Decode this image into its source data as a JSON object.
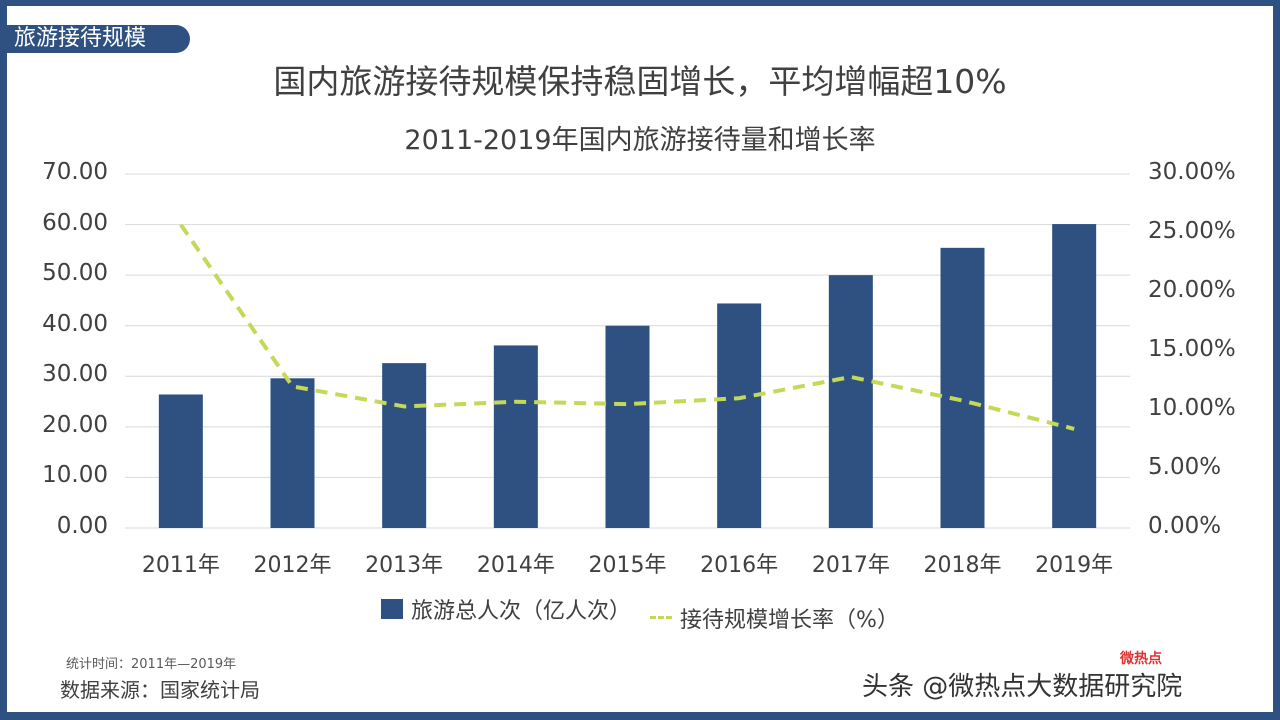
{
  "tag": "旅游接待规模",
  "main_title": "国内旅游接待规模保持稳固增长，平均增幅超10%",
  "chart_title": "2011-2019年国内旅游接待量和增长率",
  "left_axis_ticks": [
    "70.00",
    "60.00",
    "50.00",
    "40.00",
    "30.00",
    "20.00",
    "10.00",
    "0.00"
  ],
  "right_axis_ticks": [
    "30.00%",
    "25.00%",
    "20.00%",
    "15.00%",
    "10.00%",
    "5.00%",
    "0.00%"
  ],
  "x_ticks": [
    "2011年",
    "2012年",
    "2013年",
    "2014年",
    "2015年",
    "2016年",
    "2017年",
    "2018年",
    "2019年"
  ],
  "legend": {
    "bar": "旅游总人次（亿人次）",
    "line": "接待规模增长率（%）"
  },
  "footer": {
    "stat_time": "统计时间：2011年—2019年",
    "source": "数据来源：国家统计局"
  },
  "watermark": {
    "text": "头条 @微热点大数据研究院",
    "logo": "微热点"
  },
  "colors": {
    "bar": "#2e5181",
    "line": "#c3d957",
    "frame": "#2e5181",
    "grid": "#d9d9d9"
  },
  "chart_data": {
    "type": "bar",
    "title": "2011-2019年国内旅游接待量和增长率",
    "categories": [
      "2011年",
      "2012年",
      "2013年",
      "2014年",
      "2015年",
      "2016年",
      "2017年",
      "2018年",
      "2019年"
    ],
    "series": [
      {
        "name": "旅游总人次（亿人次）",
        "type": "bar",
        "axis": "left",
        "values": [
          26.4,
          29.6,
          32.6,
          36.1,
          40.0,
          44.4,
          50.0,
          55.4,
          60.1
        ]
      },
      {
        "name": "接待规模增长率（%）",
        "type": "line",
        "style": "dashed",
        "axis": "right",
        "values": [
          25.7,
          12.0,
          10.3,
          10.7,
          10.5,
          11.0,
          12.8,
          10.8,
          8.4
        ]
      }
    ],
    "xlabel": "",
    "ylabel": "",
    "y2label": "",
    "ylim": [
      0,
      70
    ],
    "y2lim": [
      0,
      30
    ],
    "grid": true,
    "legend_position": "bottom"
  }
}
